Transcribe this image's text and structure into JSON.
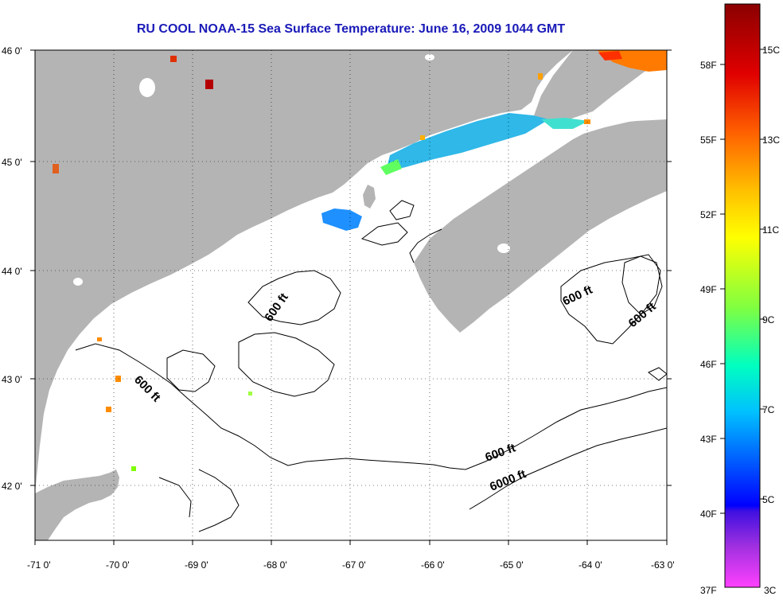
{
  "title": "RU COOL  NOAA-15  Sea Surface Temperature:  June 16, 2009 1044 GMT",
  "map": {
    "lat_ticks": [
      "46 0'",
      "45 0'",
      "44 0'",
      "43 0'",
      "42 0'"
    ],
    "lon_ticks": [
      "-71 0'",
      "-70 0'",
      "-69 0'",
      "-68 0'",
      "-67 0'",
      "-66 0'",
      "-65 0'",
      "-64 0'",
      "-63 0'"
    ],
    "isobath_labels": [
      "600 ft",
      "600 ft",
      "600 ft",
      "600 ft",
      "600 ft",
      "6000 ft"
    ],
    "land_color": "#b4b4b4",
    "water_color": "#ffffff",
    "contour_color": "#000000"
  },
  "colorbar": {
    "fahrenheit": [
      "58F",
      "55F",
      "52F",
      "49F",
      "46F",
      "43F",
      "40F",
      "37F"
    ],
    "celsius": [
      "15C",
      "13C",
      "11C",
      "9C",
      "7C",
      "5C",
      "3C"
    ],
    "scale_colors": [
      "#8b0000",
      "#ff0000",
      "#ff8000",
      "#ffff00",
      "#80ff00",
      "#00ff80",
      "#00ffff",
      "#0080ff",
      "#0000ff",
      "#8000ff",
      "#ff40ff"
    ]
  }
}
